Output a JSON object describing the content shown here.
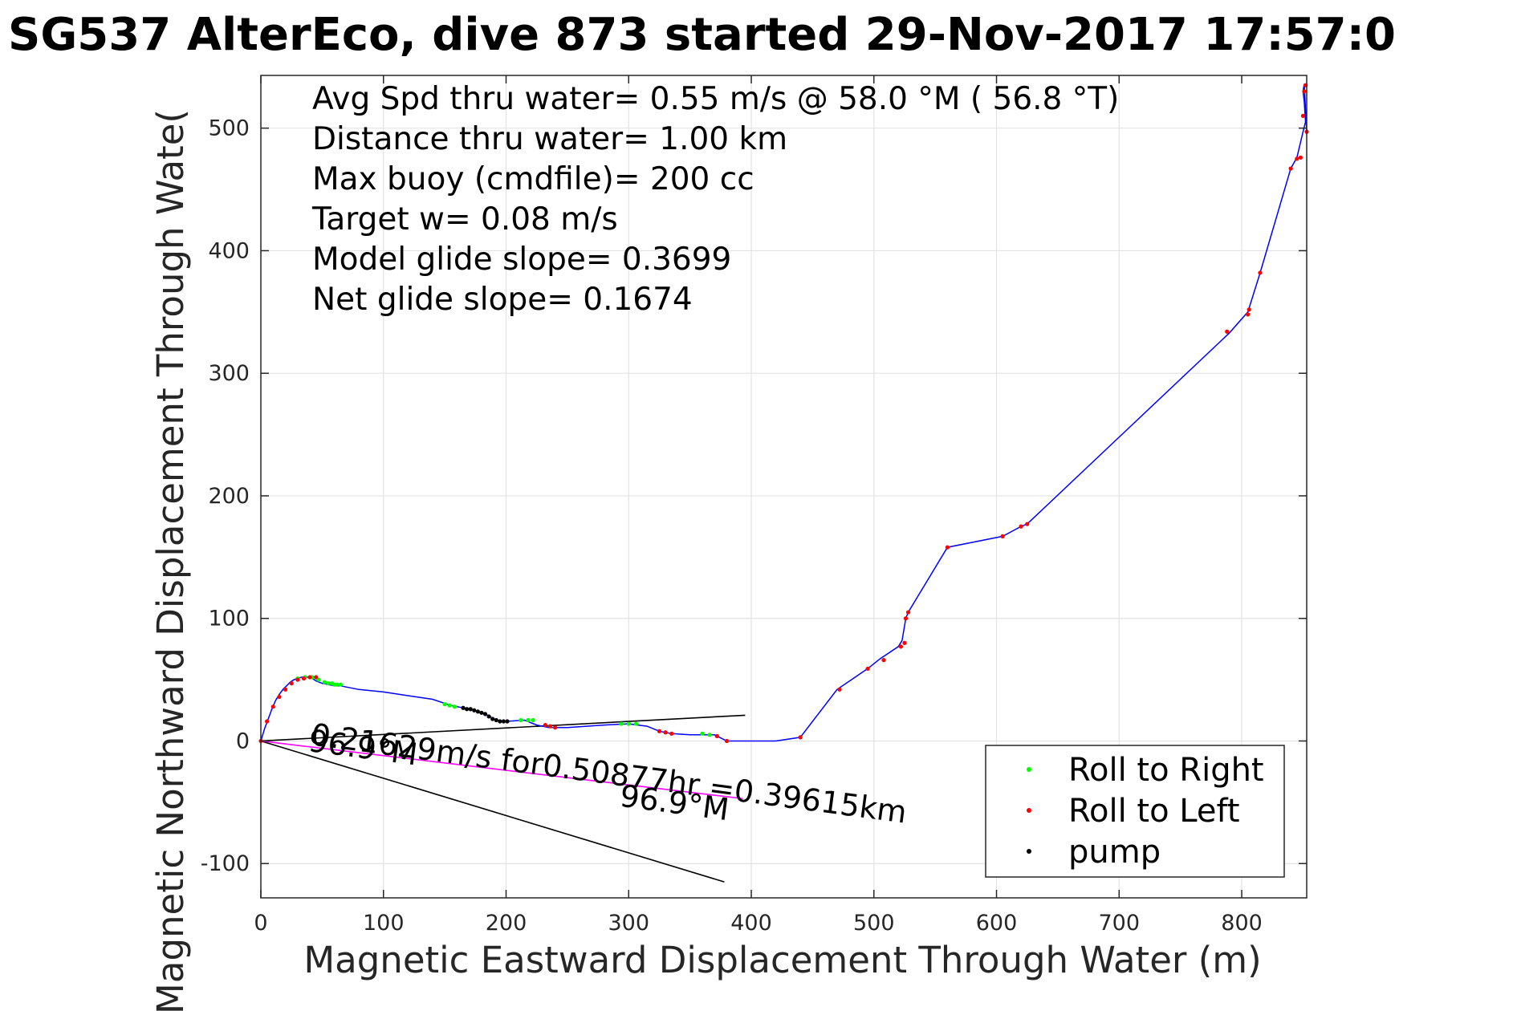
{
  "chart_data": {
    "type": "scatter",
    "title": "SG537 AlterEco, dive 873 started 29-Nov-2017 17:57:0",
    "xlabel": "Magnetic Eastward Displacement Through Water (m)",
    "ylabel": "Magnetic Northward Displacement Through Wate(",
    "xlim": [
      0,
      853
    ],
    "ylim": [
      -128,
      543
    ],
    "xticks": [
      0,
      100,
      200,
      300,
      400,
      500,
      600,
      700,
      800
    ],
    "yticks": [
      -100,
      0,
      100,
      200,
      300,
      400,
      500
    ],
    "grid": true,
    "legend_position": "bottom-right",
    "annotations": [
      "Avg Spd thru water=  0.55 m/s @  58.0 °M ( 56.8 °T)",
      "Distance thru water=  1.00 km",
      "Max buoy (cmdfile)= 200 cc",
      "Target w= 0.08 m/s",
      "Model glide slope= 0.3699",
      "Net glide slope= 0.1674"
    ],
    "current_label": "0.21629m/s for0.50877hr =0.39615km",
    "heading_labels": [
      "96.9°M",
      "96.9°M"
    ],
    "track": {
      "color": "#0000ff",
      "x": [
        0,
        3,
        6,
        9,
        12,
        15,
        18,
        21,
        24,
        27,
        30,
        33,
        36,
        39,
        42,
        45,
        50,
        55,
        60,
        65,
        70,
        80,
        100,
        120,
        140,
        155,
        165,
        175,
        185,
        190,
        195,
        200,
        215,
        225,
        235,
        250,
        280,
        300,
        315,
        325,
        335,
        350,
        370,
        380,
        400,
        420,
        440,
        470,
        495,
        505,
        520,
        523,
        526,
        528,
        560,
        605,
        620,
        625,
        790,
        805,
        815,
        840,
        845,
        850,
        852,
        851,
        850,
        851,
        853
      ],
      "y": [
        0,
        10,
        18,
        26,
        33,
        38,
        42,
        45,
        48,
        50,
        51,
        52,
        52,
        52,
        51,
        49,
        47,
        46,
        45,
        45,
        44,
        42,
        40,
        37,
        34,
        29,
        27,
        25,
        21,
        18,
        16,
        16,
        17,
        13,
        11,
        11,
        13,
        14,
        12,
        8,
        6,
        5,
        5,
        0,
        0,
        0,
        3,
        42,
        59,
        67,
        77,
        82,
        100,
        105,
        158,
        167,
        175,
        177,
        333,
        350,
        382,
        467,
        476,
        497,
        505,
        522,
        530,
        536,
        497
      ]
    },
    "series": [
      {
        "name": "Roll to Right",
        "color": "#00ff00",
        "x": [
          30,
          36,
          42,
          47,
          52,
          55,
          58,
          60,
          62,
          65,
          150,
          154,
          158,
          212,
          218,
          222,
          294,
          300,
          306,
          360,
          366
        ],
        "y": [
          51,
          52,
          52,
          50,
          48,
          47,
          47,
          46,
          46,
          46,
          30,
          29,
          28,
          17,
          17,
          17,
          14,
          14,
          14,
          6,
          5
        ]
      },
      {
        "name": "Roll to Left",
        "color": "#ff0000",
        "x": [
          0,
          5,
          10,
          15,
          20,
          25,
          30,
          35,
          40,
          45,
          232,
          236,
          240,
          325,
          330,
          335,
          372,
          380,
          440,
          472,
          495,
          508,
          522,
          525,
          526,
          528,
          560,
          605,
          620,
          625,
          788,
          805,
          806,
          815,
          840,
          845,
          848,
          850,
          851,
          852,
          853
        ],
        "y": [
          0,
          16,
          28,
          36,
          42,
          47,
          50,
          51,
          52,
          52,
          13,
          12,
          11,
          8,
          7,
          6,
          4,
          0,
          3,
          42,
          59,
          66,
          77,
          80,
          100,
          105,
          158,
          167,
          175,
          177,
          334,
          348,
          352,
          382,
          467,
          475,
          476,
          510,
          530,
          535,
          497
        ]
      },
      {
        "name": "pump",
        "color": "#000000",
        "x": [
          165,
          168,
          171,
          174,
          177,
          180,
          183,
          186,
          189,
          192,
          195,
          198,
          201
        ],
        "y": [
          27,
          26,
          26,
          25,
          24,
          23,
          22,
          20,
          18,
          17,
          16,
          16,
          16
        ]
      }
    ],
    "reference_lines": [
      {
        "color": "#000000",
        "x": [
          0,
          395
        ],
        "y": [
          0,
          21
        ]
      },
      {
        "color": "#000000",
        "x": [
          0,
          378
        ],
        "y": [
          0,
          -115
        ]
      },
      {
        "color": "#ff00ff",
        "x": [
          0,
          393
        ],
        "y": [
          0,
          -47
        ]
      }
    ]
  }
}
